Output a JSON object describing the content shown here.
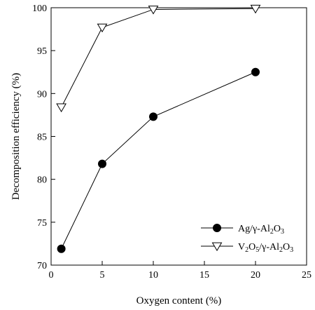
{
  "chart_data": {
    "type": "line",
    "xlabel": "Oxygen content (%)",
    "ylabel": "Decomposition efficiency (%)",
    "xlim": [
      0,
      25
    ],
    "ylim": [
      70,
      100
    ],
    "xticks": [
      0,
      5,
      10,
      15,
      20,
      25
    ],
    "yticks": [
      70,
      75,
      80,
      85,
      90,
      95,
      100
    ],
    "grid": false,
    "legend_position": "bottom-right",
    "series": [
      {
        "name": "Ag/γ-Al2O3",
        "legend_parts": [
          "Ag/γ-Al",
          "2",
          "O",
          "3"
        ],
        "marker": "filled-circle",
        "color": "#000000",
        "x": [
          1,
          5,
          10,
          20
        ],
        "y": [
          71.9,
          81.8,
          87.3,
          92.5
        ]
      },
      {
        "name": "V2O5/γ-Al2O3",
        "legend_parts": [
          "V",
          "2",
          "O",
          "5",
          "/γ-Al",
          "2",
          "O",
          "3"
        ],
        "marker": "open-triangle-down",
        "color": "#000000",
        "x": [
          1,
          5,
          10,
          20
        ],
        "y": [
          88.4,
          97.7,
          99.8,
          99.9
        ]
      }
    ]
  }
}
